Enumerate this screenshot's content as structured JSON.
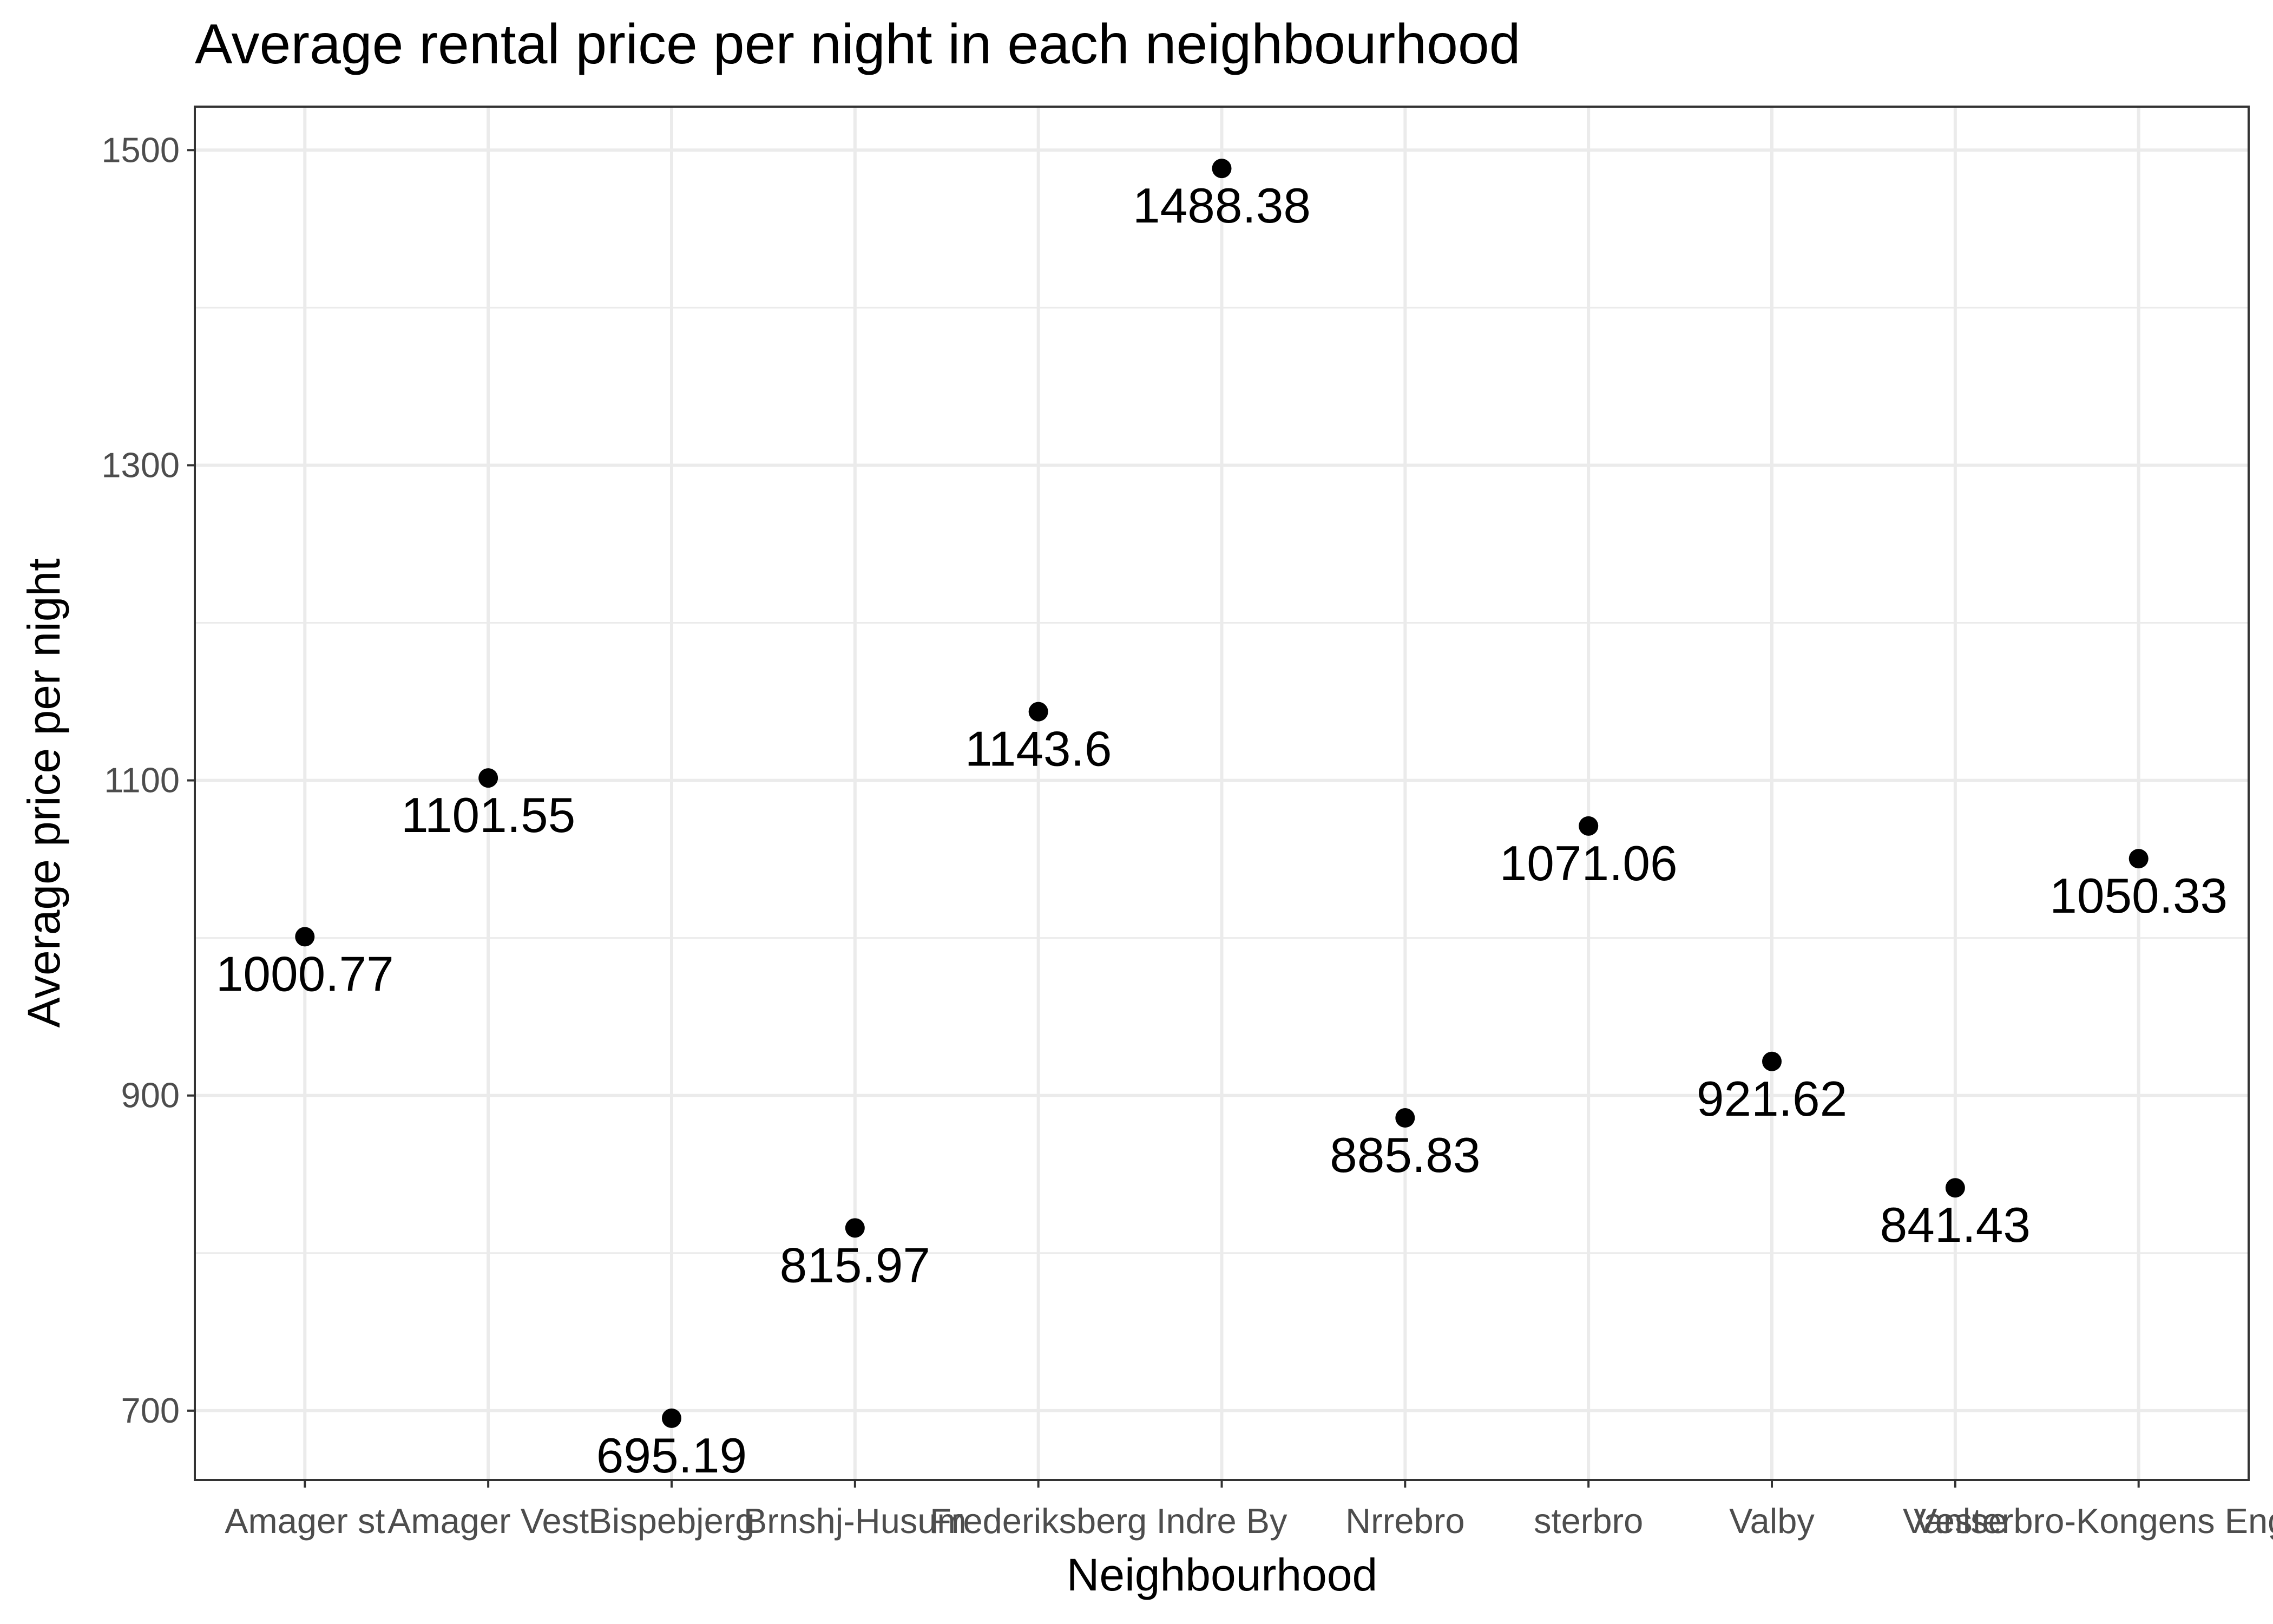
{
  "chart_data": {
    "type": "scatter",
    "title": "Average rental price per night in each neighbourhood",
    "xlabel": "Neighbourhood",
    "ylabel": "Average price per night",
    "categories": [
      "Amager st",
      "Amager Vest",
      "Bispebjerg",
      "Brnshj-Husum",
      "Frederiksberg",
      "Indre By",
      "Nrrebro",
      "sterbro",
      "Valby",
      "Vanlse",
      "Vesterbro-Kongens Enghave"
    ],
    "values": [
      1000.77,
      1101.55,
      695.19,
      815.97,
      1143.6,
      1488.38,
      885.83,
      1071.06,
      921.62,
      841.43,
      1050.33
    ],
    "data_labels": [
      "1000.77",
      "1101.55",
      "695.19",
      "815.97",
      "1143.6",
      "1488.38",
      "885.83",
      "1071.06",
      "921.62",
      "841.43",
      "1050.33"
    ],
    "yticks": [
      700,
      900,
      1100,
      1300,
      1500
    ],
    "ylim": [
      655.98,
      1527.59
    ],
    "grid": true,
    "legend": "none"
  }
}
